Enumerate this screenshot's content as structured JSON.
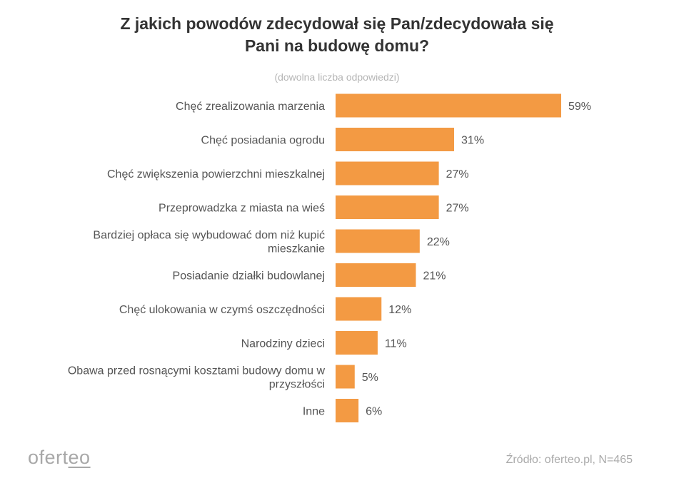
{
  "chart_data": {
    "type": "bar",
    "orientation": "horizontal",
    "title": "Z jakich powodów zdecydował się Pan/zdecydowała się Pani na budowę domu?",
    "title_lines": [
      "Z jakich powodów zdecydował się Pan/zdecydowała się",
      "Pani na budowę domu?"
    ],
    "subtitle": "(dowolna liczba odpowiedzi)",
    "categories": [
      [
        "Chęć zrealizowania marzenia"
      ],
      [
        "Chęć posiadania ogrodu"
      ],
      [
        "Chęć zwiększenia powierzchni mieszkalnej"
      ],
      [
        "Przeprowadzka z miasta na wieś"
      ],
      [
        "Bardziej opłaca się wybudować dom niż kupić",
        "mieszkanie"
      ],
      [
        "Posiadanie działki budowlanej"
      ],
      [
        "Chęć ulokowania w czymś oszczędności"
      ],
      [
        "Narodziny dzieci"
      ],
      [
        "Obawa przed rosnącymi kosztami budowy domu w",
        "przyszłości"
      ],
      [
        "Inne"
      ]
    ],
    "values": [
      59,
      31,
      27,
      27,
      22,
      21,
      12,
      11,
      5,
      6
    ],
    "value_labels": [
      "59%",
      "31%",
      "27%",
      "27%",
      "22%",
      "21%",
      "12%",
      "11%",
      "5%",
      "6%"
    ],
    "unit": "%",
    "xlim": [
      0,
      59
    ],
    "grid": false,
    "legend": "none",
    "bar_color": "#f39a43"
  },
  "footer": {
    "logo_main": "ofert",
    "logo_end": "eo",
    "source": "Źródło: oferteo.pl, N=465"
  }
}
